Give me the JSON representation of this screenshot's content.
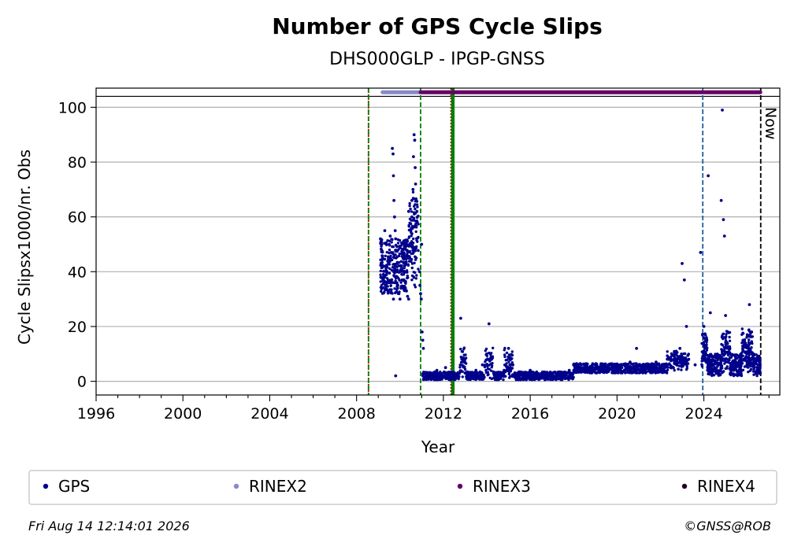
{
  "chart_data": {
    "type": "scatter",
    "title": "Number of GPS Cycle Slips",
    "subtitle": "DHS000GLP - IPGP-GNSS",
    "xlabel": "Year",
    "ylabel": "Cycle Slipsx1000/nr. Obs",
    "xlim": [
      1996,
      2027.5
    ],
    "ylim": [
      -5,
      107
    ],
    "x_ticks": [
      "1996",
      "2000",
      "2004",
      "2008",
      "2012",
      "2016",
      "2020",
      "2024"
    ],
    "x_tick_values": [
      1996,
      2000,
      2004,
      2008,
      2012,
      2016,
      2020,
      2024
    ],
    "y_ticks": [
      "0",
      "20",
      "40",
      "60",
      "80",
      "100"
    ],
    "y_tick_values": [
      0,
      20,
      40,
      60,
      80,
      100
    ],
    "grid": "horizontal",
    "now_label": "Now",
    "now_x": 2026.62,
    "top_line_y": 104,
    "vertical_lines": [
      {
        "x": 2008.55,
        "color": "#cc0000",
        "style": "dotted"
      },
      {
        "x": 2008.55,
        "color": "#008000",
        "style": "dashed"
      },
      {
        "x": 2010.95,
        "color": "#008000",
        "style": "dashed"
      },
      {
        "x": 2012.35,
        "color": "#cc0000",
        "style": "dotted"
      },
      {
        "x": 2012.4,
        "color": "#008000",
        "style": "solid"
      },
      {
        "x": 2012.47,
        "color": "#008000",
        "style": "solid"
      },
      {
        "x": 2023.95,
        "color": "#1f5fa0",
        "style": "dashed"
      },
      {
        "x": 2026.62,
        "color": "#000000",
        "style": "dashed"
      }
    ],
    "rinex_bars": [
      {
        "name": "RINEX2",
        "color": "#8888cc",
        "y": 105.5,
        "x_start": 2009.2,
        "x_end": 2010.9
      },
      {
        "name": "RINEX3",
        "color": "#660066",
        "y": 105.5,
        "x_start": 2010.95,
        "x_end": 2026.6
      }
    ],
    "series": [
      {
        "name": "GPS",
        "color": "#00008b",
        "points": [
          [
            2009.1,
            52
          ],
          [
            2009.15,
            48
          ],
          [
            2009.2,
            45
          ],
          [
            2009.25,
            42
          ],
          [
            2009.3,
            38
          ],
          [
            2009.35,
            35
          ],
          [
            2009.4,
            40
          ],
          [
            2009.45,
            44
          ],
          [
            2009.5,
            50
          ],
          [
            2009.55,
            53
          ],
          [
            2009.6,
            47
          ],
          [
            2009.65,
            85
          ],
          [
            2009.68,
            83
          ],
          [
            2009.7,
            75
          ],
          [
            2009.72,
            66
          ],
          [
            2009.75,
            60
          ],
          [
            2009.78,
            55
          ],
          [
            2009.8,
            52
          ],
          [
            2009.82,
            45
          ],
          [
            2009.85,
            40
          ],
          [
            2009.88,
            38
          ],
          [
            2009.9,
            35
          ],
          [
            2009.95,
            32
          ],
          [
            2010.0,
            30
          ],
          [
            2010.05,
            34
          ],
          [
            2010.1,
            37
          ],
          [
            2010.15,
            40
          ],
          [
            2010.2,
            45
          ],
          [
            2010.25,
            36
          ],
          [
            2010.3,
            33
          ],
          [
            2010.35,
            31
          ],
          [
            2010.4,
            30
          ],
          [
            2010.45,
            45
          ],
          [
            2010.5,
            55
          ],
          [
            2010.55,
            60
          ],
          [
            2010.6,
            70
          ],
          [
            2010.62,
            82
          ],
          [
            2010.65,
            90
          ],
          [
            2010.68,
            88
          ],
          [
            2010.7,
            78
          ],
          [
            2010.72,
            72
          ],
          [
            2010.75,
            66
          ],
          [
            2010.78,
            62
          ],
          [
            2010.8,
            58
          ],
          [
            2009.8,
            2
          ],
          [
            2010.9,
            40
          ],
          [
            2010.92,
            35
          ],
          [
            2010.95,
            32
          ],
          [
            2010.98,
            30
          ],
          [
            2011.0,
            50
          ],
          [
            2011.02,
            18
          ],
          [
            2011.05,
            15
          ],
          [
            2011.08,
            12
          ],
          [
            2009.3,
            55
          ],
          [
            2009.5,
            36
          ],
          [
            2009.7,
            30
          ],
          [
            2010.0,
            40
          ],
          [
            2010.2,
            50
          ],
          [
            2010.4,
            62
          ],
          [
            2010.55,
            66
          ],
          [
            2011.1,
            1
          ],
          [
            2011.3,
            2
          ],
          [
            2011.5,
            3
          ],
          [
            2011.7,
            4
          ],
          [
            2011.9,
            2
          ],
          [
            2012.1,
            5
          ],
          [
            2012.3,
            3
          ],
          [
            2012.6,
            2
          ],
          [
            2012.8,
            23
          ],
          [
            2012.85,
            8
          ],
          [
            2013.0,
            3
          ],
          [
            2013.2,
            2
          ],
          [
            2013.5,
            4
          ],
          [
            2013.8,
            6
          ],
          [
            2014.0,
            10
          ],
          [
            2014.1,
            21
          ],
          [
            2014.2,
            8
          ],
          [
            2014.5,
            3
          ],
          [
            2014.8,
            4
          ],
          [
            2015.0,
            12
          ],
          [
            2015.2,
            6
          ],
          [
            2015.5,
            3
          ],
          [
            2015.8,
            2
          ],
          [
            2016.0,
            4
          ],
          [
            2016.3,
            3
          ],
          [
            2016.6,
            2
          ],
          [
            2016.9,
            3
          ],
          [
            2017.2,
            2
          ],
          [
            2017.5,
            3
          ],
          [
            2017.8,
            4
          ],
          [
            2018.0,
            6
          ],
          [
            2018.3,
            5
          ],
          [
            2018.6,
            6
          ],
          [
            2019.0,
            5
          ],
          [
            2019.3,
            4
          ],
          [
            2019.6,
            6
          ],
          [
            2020.0,
            5
          ],
          [
            2020.3,
            6
          ],
          [
            2020.6,
            7
          ],
          [
            2020.9,
            12
          ],
          [
            2021.2,
            6
          ],
          [
            2021.5,
            5
          ],
          [
            2021.8,
            7
          ],
          [
            2022.1,
            6
          ],
          [
            2022.4,
            8
          ],
          [
            2022.7,
            10
          ],
          [
            2022.9,
            12
          ],
          [
            2023.0,
            43
          ],
          [
            2023.1,
            37
          ],
          [
            2023.2,
            20
          ],
          [
            2023.3,
            8
          ],
          [
            2023.6,
            6
          ],
          [
            2023.85,
            47
          ],
          [
            2024.0,
            20
          ],
          [
            2024.1,
            15
          ],
          [
            2024.2,
            75
          ],
          [
            2024.3,
            25
          ],
          [
            2024.5,
            5
          ],
          [
            2024.7,
            3
          ],
          [
            2024.8,
            66
          ],
          [
            2024.85,
            99
          ],
          [
            2024.9,
            59
          ],
          [
            2024.95,
            53
          ],
          [
            2025.0,
            24
          ],
          [
            2025.1,
            18
          ],
          [
            2025.2,
            12
          ],
          [
            2025.4,
            5
          ],
          [
            2025.6,
            3
          ],
          [
            2025.8,
            15
          ],
          [
            2026.0,
            17
          ],
          [
            2026.1,
            28
          ],
          [
            2026.2,
            18
          ],
          [
            2026.3,
            8
          ],
          [
            2026.5,
            4
          ],
          [
            2026.6,
            3
          ]
        ]
      }
    ],
    "legend": [
      {
        "label": "GPS",
        "color": "#00008b"
      },
      {
        "label": "RINEX2",
        "color": "#8888cc"
      },
      {
        "label": "RINEX3",
        "color": "#660066"
      },
      {
        "label": "RINEX4",
        "color": "#220022"
      }
    ],
    "legend_position": "bottom"
  },
  "footer": {
    "timestamp": "Fri Aug 14 12:14:01 2026",
    "credit": "©GNSS@ROB"
  }
}
